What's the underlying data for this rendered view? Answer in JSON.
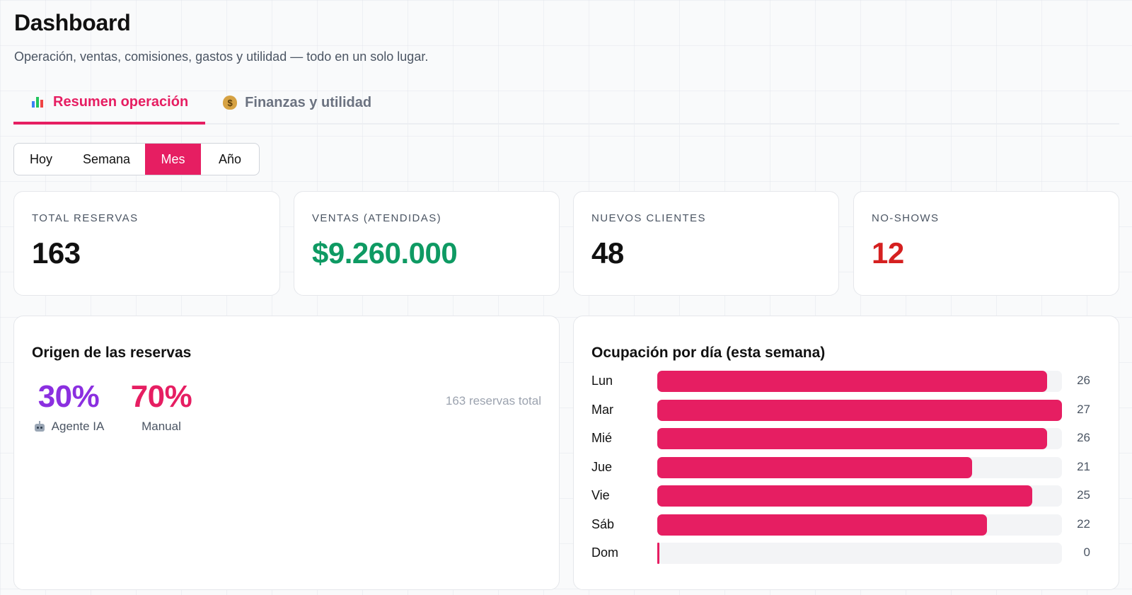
{
  "header": {
    "title": "Dashboard",
    "subtitle": "Operación, ventas, comisiones, gastos y utilidad — todo en un solo lugar."
  },
  "tabs": [
    {
      "label": "Resumen operación",
      "icon": "bar-chart-icon",
      "active": true
    },
    {
      "label": "Finanzas y utilidad",
      "icon": "money-bag-icon",
      "active": false
    }
  ],
  "period": {
    "options": [
      "Hoy",
      "Semana",
      "Mes",
      "Año"
    ],
    "selected": "Mes"
  },
  "kpis": [
    {
      "label": "TOTAL RESERVAS",
      "value": "163",
      "color": "#111111"
    },
    {
      "label": "VENTAS (ATENDIDAS)",
      "value": "$9.260.000",
      "color": "#0e9a63"
    },
    {
      "label": "NUEVOS CLIENTES",
      "value": "48",
      "color": "#111111"
    },
    {
      "label": "NO-SHOWS",
      "value": "12",
      "color": "#d52020"
    }
  ],
  "origin": {
    "title": "Origen de las reservas",
    "items": [
      {
        "percent": "30%",
        "label": "Agente IA",
        "icon": "robot-icon",
        "color": "#8b2fe0"
      },
      {
        "percent": "70%",
        "label": "Manual",
        "color": "#e61e62"
      }
    ],
    "total": "163 reservas total"
  },
  "occupancy": {
    "title": "Ocupación por día (esta semana)"
  },
  "chart_data": {
    "type": "bar",
    "orientation": "horizontal",
    "title": "Ocupación por día (esta semana)",
    "categories": [
      "Lun",
      "Mar",
      "Mié",
      "Jue",
      "Vie",
      "Sáb",
      "Dom"
    ],
    "values": [
      26,
      27,
      26,
      21,
      25,
      22,
      0
    ],
    "xlim": [
      0,
      27
    ],
    "bar_color": "#e61e62",
    "grid": false
  }
}
